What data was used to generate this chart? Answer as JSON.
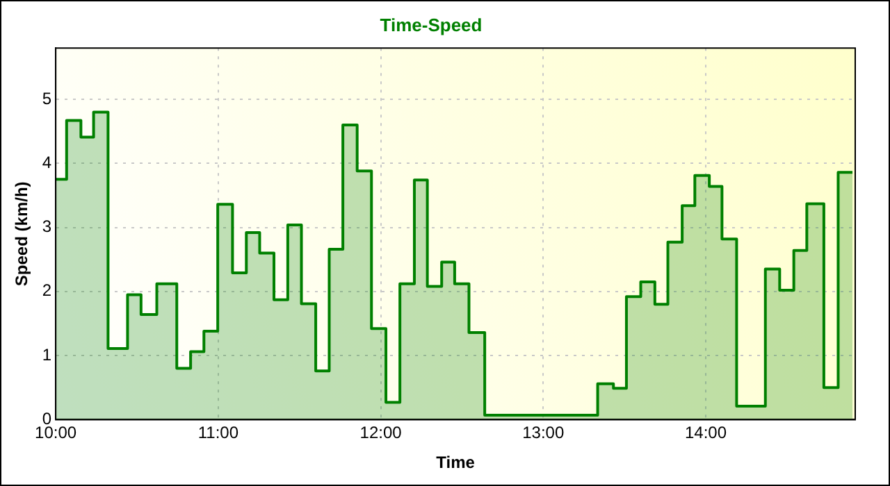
{
  "chart_data": {
    "type": "area",
    "title": "Time-Speed",
    "xlabel": "Time",
    "ylabel": "Speed (km/h)",
    "x": [
      10.0,
      10.067,
      10.067,
      10.155,
      10.155,
      10.233,
      10.233,
      10.322,
      10.322,
      10.442,
      10.442,
      10.525,
      10.525,
      10.622,
      10.622,
      10.745,
      10.745,
      10.83,
      10.83,
      10.912,
      10.912,
      10.997,
      10.997,
      11.088,
      11.088,
      11.173,
      11.173,
      11.255,
      11.255,
      11.343,
      11.343,
      11.428,
      11.428,
      11.512,
      11.512,
      11.6,
      11.6,
      11.683,
      11.683,
      11.767,
      11.767,
      11.855,
      11.855,
      11.943,
      11.943,
      12.032,
      12.032,
      12.118,
      12.118,
      12.207,
      12.207,
      12.287,
      12.287,
      12.375,
      12.375,
      12.455,
      12.455,
      12.543,
      12.543,
      12.64,
      12.64,
      13.335,
      13.335,
      13.432,
      13.432,
      13.512,
      13.512,
      13.6,
      13.6,
      13.687,
      13.687,
      13.767,
      13.767,
      13.855,
      13.855,
      13.933,
      13.933,
      14.022,
      14.022,
      14.1,
      14.1,
      14.19,
      14.19,
      14.367,
      14.367,
      14.455,
      14.455,
      14.542,
      14.542,
      14.622,
      14.622,
      14.727,
      14.727,
      14.815,
      14.815,
      14.903
    ],
    "series": [
      {
        "color": "#008000",
        "values": [
          3.75,
          3.75,
          4.67,
          4.67,
          4.41,
          4.41,
          4.8,
          4.8,
          1.11,
          1.11,
          1.95,
          1.95,
          1.64,
          1.64,
          2.12,
          2.12,
          0.8,
          0.8,
          1.06,
          1.06,
          1.38,
          1.38,
          3.36,
          3.36,
          2.29,
          2.29,
          2.92,
          2.92,
          2.6,
          2.6,
          1.87,
          1.87,
          3.04,
          3.04,
          1.81,
          1.81,
          0.76,
          0.76,
          2.66,
          2.66,
          4.6,
          4.6,
          3.88,
          3.88,
          1.42,
          1.42,
          0.27,
          0.27,
          2.12,
          2.12,
          3.74,
          3.74,
          2.08,
          2.08,
          2.46,
          2.46,
          2.12,
          2.12,
          1.36,
          1.36,
          0.07,
          0.07,
          0.56,
          0.56,
          0.49,
          0.49,
          1.92,
          1.92,
          2.15,
          2.15,
          1.8,
          1.8,
          2.77,
          2.77,
          3.34,
          3.34,
          3.81,
          3.81,
          3.64,
          3.64,
          2.82,
          2.82,
          0.21,
          0.21,
          2.35,
          2.35,
          2.02,
          2.02,
          2.64,
          2.64,
          3.37,
          3.37,
          0.5,
          0.5,
          3.86,
          3.86
        ]
      }
    ],
    "xlim": [
      10,
      14.92
    ],
    "xticks": [
      {
        "value": 10,
        "label": "10:00"
      },
      {
        "value": 11,
        "label": "11:00"
      },
      {
        "value": 12,
        "label": "12:00"
      },
      {
        "value": 13,
        "label": "13:00"
      },
      {
        "value": 14,
        "label": "14:00"
      }
    ],
    "ylim": [
      0,
      5.8
    ],
    "yticks": [
      0,
      1,
      2,
      3,
      4,
      5
    ],
    "grid": true,
    "legend": false,
    "marker": "none",
    "line_style": "solid"
  }
}
